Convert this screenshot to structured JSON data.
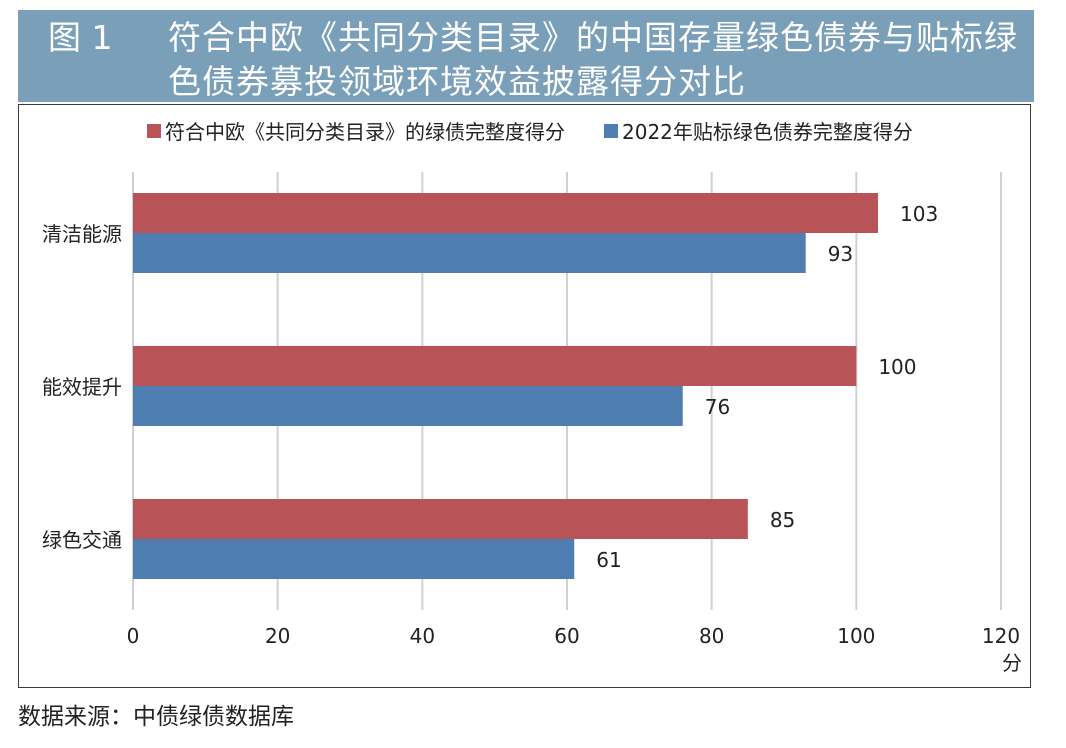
{
  "figure": {
    "label": "图 1",
    "title": "符合中欧《共同分类目录》的中国存量绿色债券与贴标绿色债券募投领域环境效益披露得分对比"
  },
  "source": "数据来源：中债绿债数据库",
  "colors": {
    "series1": "#b85457",
    "series2": "#4e7eb2",
    "title_band": "#7a9fb8",
    "grid": "#d0d0d0"
  },
  "chart_data": {
    "type": "bar",
    "orientation": "horizontal",
    "categories": [
      "清洁能源",
      "能效提升",
      "绿色交通"
    ],
    "series": [
      {
        "name": "符合中欧《共同分类目录》的绿债完整度得分",
        "values": [
          103,
          100,
          85
        ]
      },
      {
        "name": "2022年贴标绿色债券完整度得分",
        "values": [
          93,
          76,
          61
        ]
      }
    ],
    "x_ticks": [
      "0",
      "20",
      "40",
      "60",
      "80",
      "100",
      "120"
    ],
    "xlim": [
      0,
      120
    ],
    "x_unit": "分",
    "grid": true,
    "legend_position": "top-right"
  }
}
